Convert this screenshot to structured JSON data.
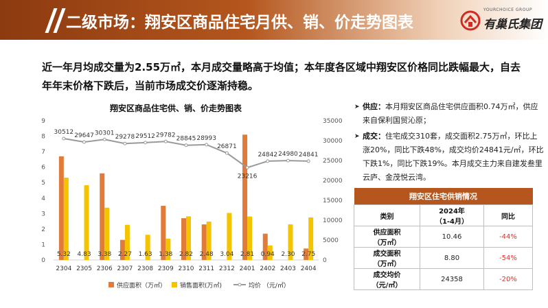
{
  "header": {
    "title": "二级市场：翔安区商品住宅月供、销、价走势图表"
  },
  "logo": {
    "en": "YOURCHOICE GROUP",
    "cn": "有巢氏集团"
  },
  "summary": {
    "text": "近一年月均成交量为2.55万㎡，本月成交量略高于均值；本年度各区域中翔安区价格同比跌幅最大，自去年年末价格下跌后，当前市场成交价逐渐持稳。"
  },
  "bullets": [
    {
      "head": "供应：",
      "text": "本月翔安区商品住宅供应面积0.74万㎡，供应来自保利国贸沁原；"
    },
    {
      "head": "成交：",
      "text": "住宅成交310套，成交面积2.75万㎡，环比上涨20%，同比下跌48%，成交均价24841元/㎡，环比下跌1%，同比下跌19%。本月成交主力来自建发叁里云庐、金茂悦云湾。"
    }
  ],
  "table": {
    "caption": "翔安区住宅供销情况",
    "headers": [
      "类别",
      "2024年\n（1-4月）",
      "同比"
    ],
    "rows": [
      {
        "label": "供应面积\n（万㎡）",
        "value": "10.46",
        "yoy": "-44%"
      },
      {
        "label": "成交面积\n（万㎡）",
        "value": "8.80",
        "yoy": "-54%"
      },
      {
        "label": "成交均价\n（元/㎡）",
        "value": "24358",
        "yoy": "-20%"
      }
    ]
  },
  "colors": {
    "supply": "#e07b39",
    "sales": "#f5c400",
    "price": "#999999",
    "accent": "#b4561d",
    "negative": "#e0302a"
  },
  "chart_data": {
    "type": "bar",
    "title": "翔安区商品住宅供、销、价走势图表",
    "categories": [
      "2304",
      "2305",
      "2306",
      "2307",
      "2308",
      "2309",
      "2310",
      "2311",
      "2312",
      "2401",
      "2402",
      "2403",
      "2404"
    ],
    "series": [
      {
        "name": "供应面积（万㎡）",
        "type": "bar",
        "axis": "left",
        "values": [
          6.7,
          0,
          5.6,
          1.3,
          0,
          3.5,
          2.7,
          2.3,
          0,
          8.1,
          1.7,
          0,
          0.74
        ]
      },
      {
        "name": "销售面积(万㎡)",
        "type": "bar",
        "axis": "left",
        "values": [
          5.32,
          4.83,
          3.38,
          2.27,
          1.63,
          1.38,
          2.82,
          2.48,
          3.04,
          2.81,
          0.94,
          2.3,
          2.75
        ],
        "labels": [
          "5.32",
          "4.83",
          "3.38",
          "2.27",
          "1.63",
          "1.38",
          "2.82",
          "2.48",
          "3.04",
          "2.81",
          "0.94",
          "2.30",
          "2.75"
        ]
      },
      {
        "name": "均价 （元/㎡）",
        "type": "line",
        "axis": "right",
        "values": [
          30512,
          29647,
          30301,
          29278,
          29512,
          29782,
          28845,
          28993,
          26871,
          23216,
          24842,
          24980,
          24841
        ],
        "labels": [
          "30512",
          "29647",
          "30301",
          "29278",
          "29512",
          "29782",
          "28845",
          "28993",
          "26871",
          "23216",
          "24842",
          "24980",
          "24841"
        ]
      }
    ],
    "y_left": {
      "min": 0,
      "max": 9,
      "ticks": [
        "0",
        "1",
        "2",
        "3",
        "4",
        "5",
        "6",
        "7",
        "8",
        "9"
      ]
    },
    "y_right": {
      "min": 0,
      "max": 35000,
      "ticks": [
        "0",
        "5000",
        "10000",
        "15000",
        "20000",
        "25000",
        "30000",
        "35000"
      ]
    },
    "legend": "bottom",
    "grid": false
  }
}
